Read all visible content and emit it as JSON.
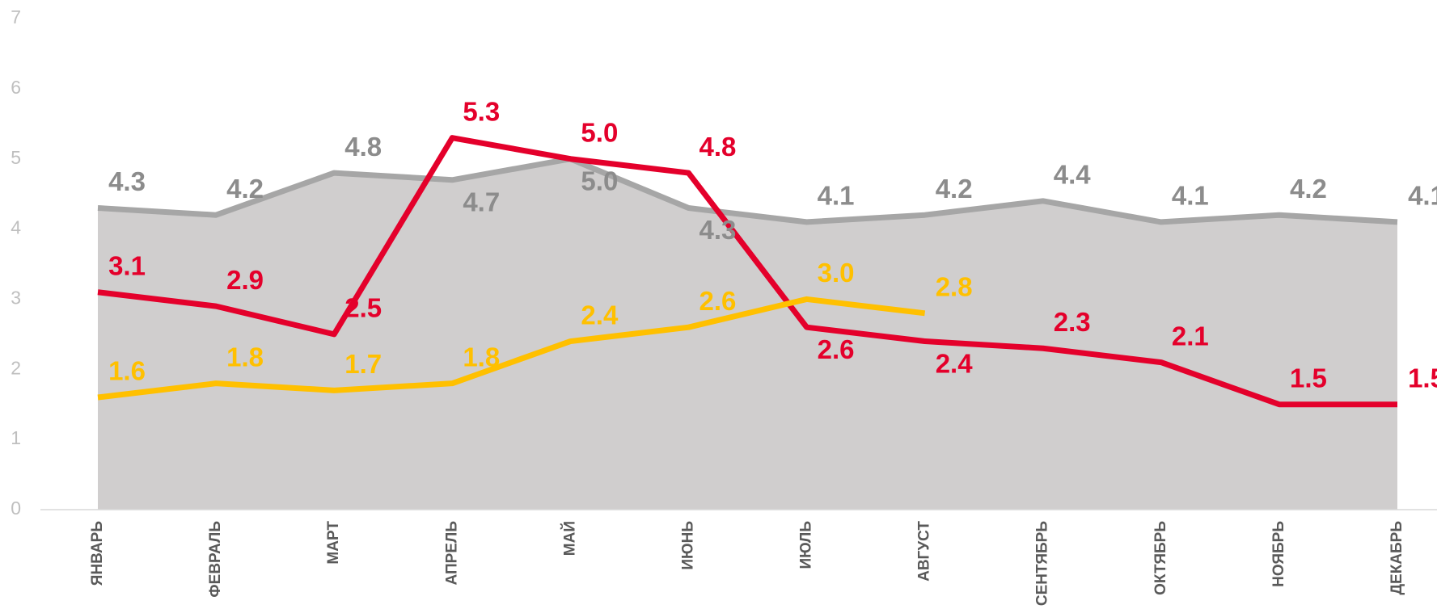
{
  "chart_data": {
    "type": "line",
    "categories": [
      "ЯНВАРЬ",
      "ФЕВРАЛЬ",
      "МАРТ",
      "АПРЕЛЬ",
      "МАЙ",
      "ИЮНЬ",
      "ИЮЛЬ",
      "АВГУСТ",
      "СЕНТЯБРЬ",
      "ОКТЯБРЬ",
      "НОЯБРЬ",
      "ДЕКАБРЬ"
    ],
    "series": [
      {
        "color": "#a6a6a6",
        "label_color": "#8c8c8c",
        "fill": "#d0cece",
        "values": [
          4.3,
          4.2,
          4.8,
          4.7,
          5.0,
          4.3,
          4.1,
          4.2,
          4.4,
          4.1,
          4.2,
          4.1
        ],
        "value_labels": [
          "4.3",
          "4.2",
          "4.8",
          "4.7",
          "5.0",
          "4.3",
          "4.1",
          "4.2",
          "4.4",
          "4.1",
          "4.2",
          "4.1"
        ]
      },
      {
        "color": "#e4002b",
        "label_color": "#e4002b",
        "values": [
          3.1,
          2.9,
          2.5,
          5.3,
          5.0,
          4.8,
          2.6,
          2.4,
          2.3,
          2.1,
          1.5,
          1.5
        ],
        "value_labels": [
          "3.1",
          "2.9",
          "2.5",
          "5.3",
          "5.0",
          "4.8",
          "2.6",
          "2.4",
          "2.3",
          "2.1",
          "1.5",
          "1.5"
        ]
      },
      {
        "color": "#ffc000",
        "label_color": "#ffc000",
        "values": [
          1.6,
          1.8,
          1.7,
          1.8,
          2.4,
          2.6,
          3.0,
          2.8,
          null,
          null,
          null,
          null
        ],
        "value_labels": [
          "1.6",
          "1.8",
          "1.7",
          "1.8",
          "2.4",
          "2.6",
          "3.0",
          "2.8",
          null,
          null,
          null,
          null
        ]
      }
    ],
    "ylim": [
      0,
      7
    ],
    "yticks": [
      0,
      1,
      2,
      3,
      4,
      5,
      6,
      7
    ],
    "grid": false
  }
}
